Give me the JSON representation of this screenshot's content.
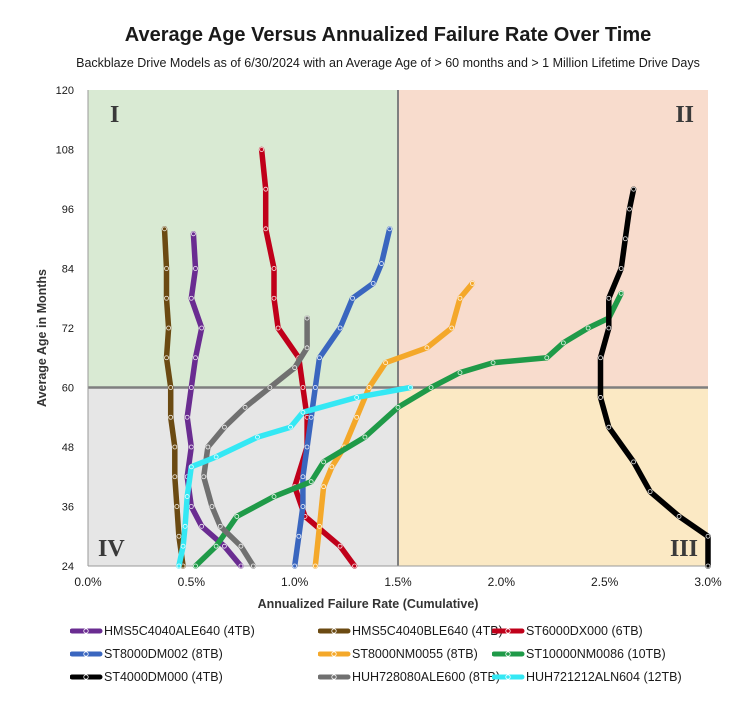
{
  "chart_data": {
    "type": "line",
    "title": "Average Age Versus  Annualized Failure Rate Over Time",
    "subtitle": "Backblaze Drive Models as of 6/30/2024 with an Average Age of > 60 months and > 1 Million Lifetime Drive Days",
    "xlabel": "Annualized Failure Rate (Cumulative)",
    "ylabel": "Average Age in Months",
    "xlim": [
      0.0,
      3.0
    ],
    "ylim": [
      24,
      120
    ],
    "x_ticks": [
      "0.0%",
      "0.5%",
      "1.0%",
      "1.5%",
      "2.0%",
      "2.5%",
      "3.0%"
    ],
    "y_ticks": [
      "24",
      "36",
      "48",
      "60",
      "72",
      "84",
      "96",
      "108",
      "120"
    ],
    "quadrants": [
      {
        "label": "I",
        "color": "#d9ead3"
      },
      {
        "label": "II",
        "color": "#f8dccd"
      },
      {
        "label": "III",
        "color": "#fbe9c4"
      },
      {
        "label": "IV",
        "color": "#e6e6e6"
      }
    ],
    "reference_lines": {
      "x": 1.5,
      "y": 60
    },
    "legend_position": "bottom",
    "series": [
      {
        "name": "HMS5C4040ALE640 (4TB)",
        "color": "#6a2c91",
        "points": [
          [
            0.74,
            24
          ],
          [
            0.66,
            28
          ],
          [
            0.55,
            32
          ],
          [
            0.5,
            36
          ],
          [
            0.48,
            42
          ],
          [
            0.5,
            48
          ],
          [
            0.48,
            54
          ],
          [
            0.5,
            60
          ],
          [
            0.52,
            66
          ],
          [
            0.55,
            72
          ],
          [
            0.5,
            78
          ],
          [
            0.52,
            84
          ],
          [
            0.51,
            91
          ]
        ]
      },
      {
        "name": "HMS5C4040BLE640 (4TB)",
        "color": "#6b4a12",
        "points": [
          [
            0.46,
            24
          ],
          [
            0.44,
            30
          ],
          [
            0.43,
            36
          ],
          [
            0.42,
            42
          ],
          [
            0.42,
            48
          ],
          [
            0.4,
            54
          ],
          [
            0.4,
            60
          ],
          [
            0.38,
            66
          ],
          [
            0.39,
            72
          ],
          [
            0.38,
            78
          ],
          [
            0.38,
            84
          ],
          [
            0.37,
            92
          ]
        ]
      },
      {
        "name": "ST6000DX000 (6TB)",
        "color": "#c0001a",
        "points": [
          [
            1.29,
            24
          ],
          [
            1.22,
            28
          ],
          [
            1.05,
            34
          ],
          [
            1.0,
            40
          ],
          [
            1.06,
            48
          ],
          [
            1.06,
            54
          ],
          [
            1.04,
            60
          ],
          [
            1.02,
            66
          ],
          [
            0.92,
            72
          ],
          [
            0.9,
            78
          ],
          [
            0.9,
            84
          ],
          [
            0.86,
            92
          ],
          [
            0.86,
            100
          ],
          [
            0.84,
            108
          ]
        ]
      },
      {
        "name": "ST8000DM002 (8TB)",
        "color": "#3a66bf",
        "points": [
          [
            1.0,
            24
          ],
          [
            1.02,
            30
          ],
          [
            1.04,
            36
          ],
          [
            1.04,
            42
          ],
          [
            1.06,
            48
          ],
          [
            1.08,
            54
          ],
          [
            1.1,
            60
          ],
          [
            1.12,
            66
          ],
          [
            1.22,
            72
          ],
          [
            1.28,
            78
          ],
          [
            1.38,
            81
          ],
          [
            1.42,
            85
          ],
          [
            1.46,
            92
          ]
        ]
      },
      {
        "name": "ST8000NM0055 (8TB)",
        "color": "#f4a82a",
        "points": [
          [
            1.1,
            24
          ],
          [
            1.12,
            32
          ],
          [
            1.14,
            40
          ],
          [
            1.18,
            44
          ],
          [
            1.24,
            48
          ],
          [
            1.3,
            54
          ],
          [
            1.36,
            60
          ],
          [
            1.44,
            65
          ],
          [
            1.64,
            68
          ],
          [
            1.76,
            72
          ],
          [
            1.8,
            78
          ],
          [
            1.86,
            81
          ]
        ]
      },
      {
        "name": "ST10000NM0086 (10TB)",
        "color": "#1f9a48",
        "points": [
          [
            0.52,
            24
          ],
          [
            0.62,
            28
          ],
          [
            0.72,
            34
          ],
          [
            0.9,
            38
          ],
          [
            1.08,
            41
          ],
          [
            1.14,
            45
          ],
          [
            1.34,
            50
          ],
          [
            1.5,
            56
          ],
          [
            1.66,
            60
          ],
          [
            1.8,
            63
          ],
          [
            1.96,
            65
          ],
          [
            2.22,
            66
          ],
          [
            2.3,
            69
          ],
          [
            2.42,
            72
          ],
          [
            2.52,
            74
          ],
          [
            2.58,
            79
          ]
        ]
      },
      {
        "name": "ST4000DM000 (4TB)",
        "color": "#000000",
        "points": [
          [
            3.0,
            24
          ],
          [
            3.0,
            30
          ],
          [
            2.86,
            34
          ],
          [
            2.72,
            39
          ],
          [
            2.64,
            45
          ],
          [
            2.52,
            52
          ],
          [
            2.48,
            58
          ],
          [
            2.48,
            66
          ],
          [
            2.52,
            72
          ],
          [
            2.52,
            78
          ],
          [
            2.58,
            84
          ],
          [
            2.6,
            90
          ],
          [
            2.62,
            96
          ],
          [
            2.64,
            100
          ]
        ]
      },
      {
        "name": "HUH728080ALE600 (8TB)",
        "color": "#707070",
        "points": [
          [
            0.8,
            24
          ],
          [
            0.74,
            28
          ],
          [
            0.64,
            32
          ],
          [
            0.6,
            36
          ],
          [
            0.56,
            42
          ],
          [
            0.58,
            48
          ],
          [
            0.66,
            52
          ],
          [
            0.76,
            56
          ],
          [
            0.88,
            60
          ],
          [
            1.0,
            64
          ],
          [
            1.06,
            68
          ],
          [
            1.06,
            74
          ]
        ]
      },
      {
        "name": "HUH721212ALN604 (12TB)",
        "color": "#34e8f4",
        "points": [
          [
            0.44,
            24
          ],
          [
            0.46,
            28
          ],
          [
            0.47,
            32
          ],
          [
            0.48,
            38
          ],
          [
            0.5,
            44
          ],
          [
            0.62,
            46
          ],
          [
            0.82,
            50
          ],
          [
            0.98,
            52
          ],
          [
            1.04,
            55
          ],
          [
            1.3,
            58
          ],
          [
            1.56,
            60
          ]
        ]
      }
    ]
  }
}
